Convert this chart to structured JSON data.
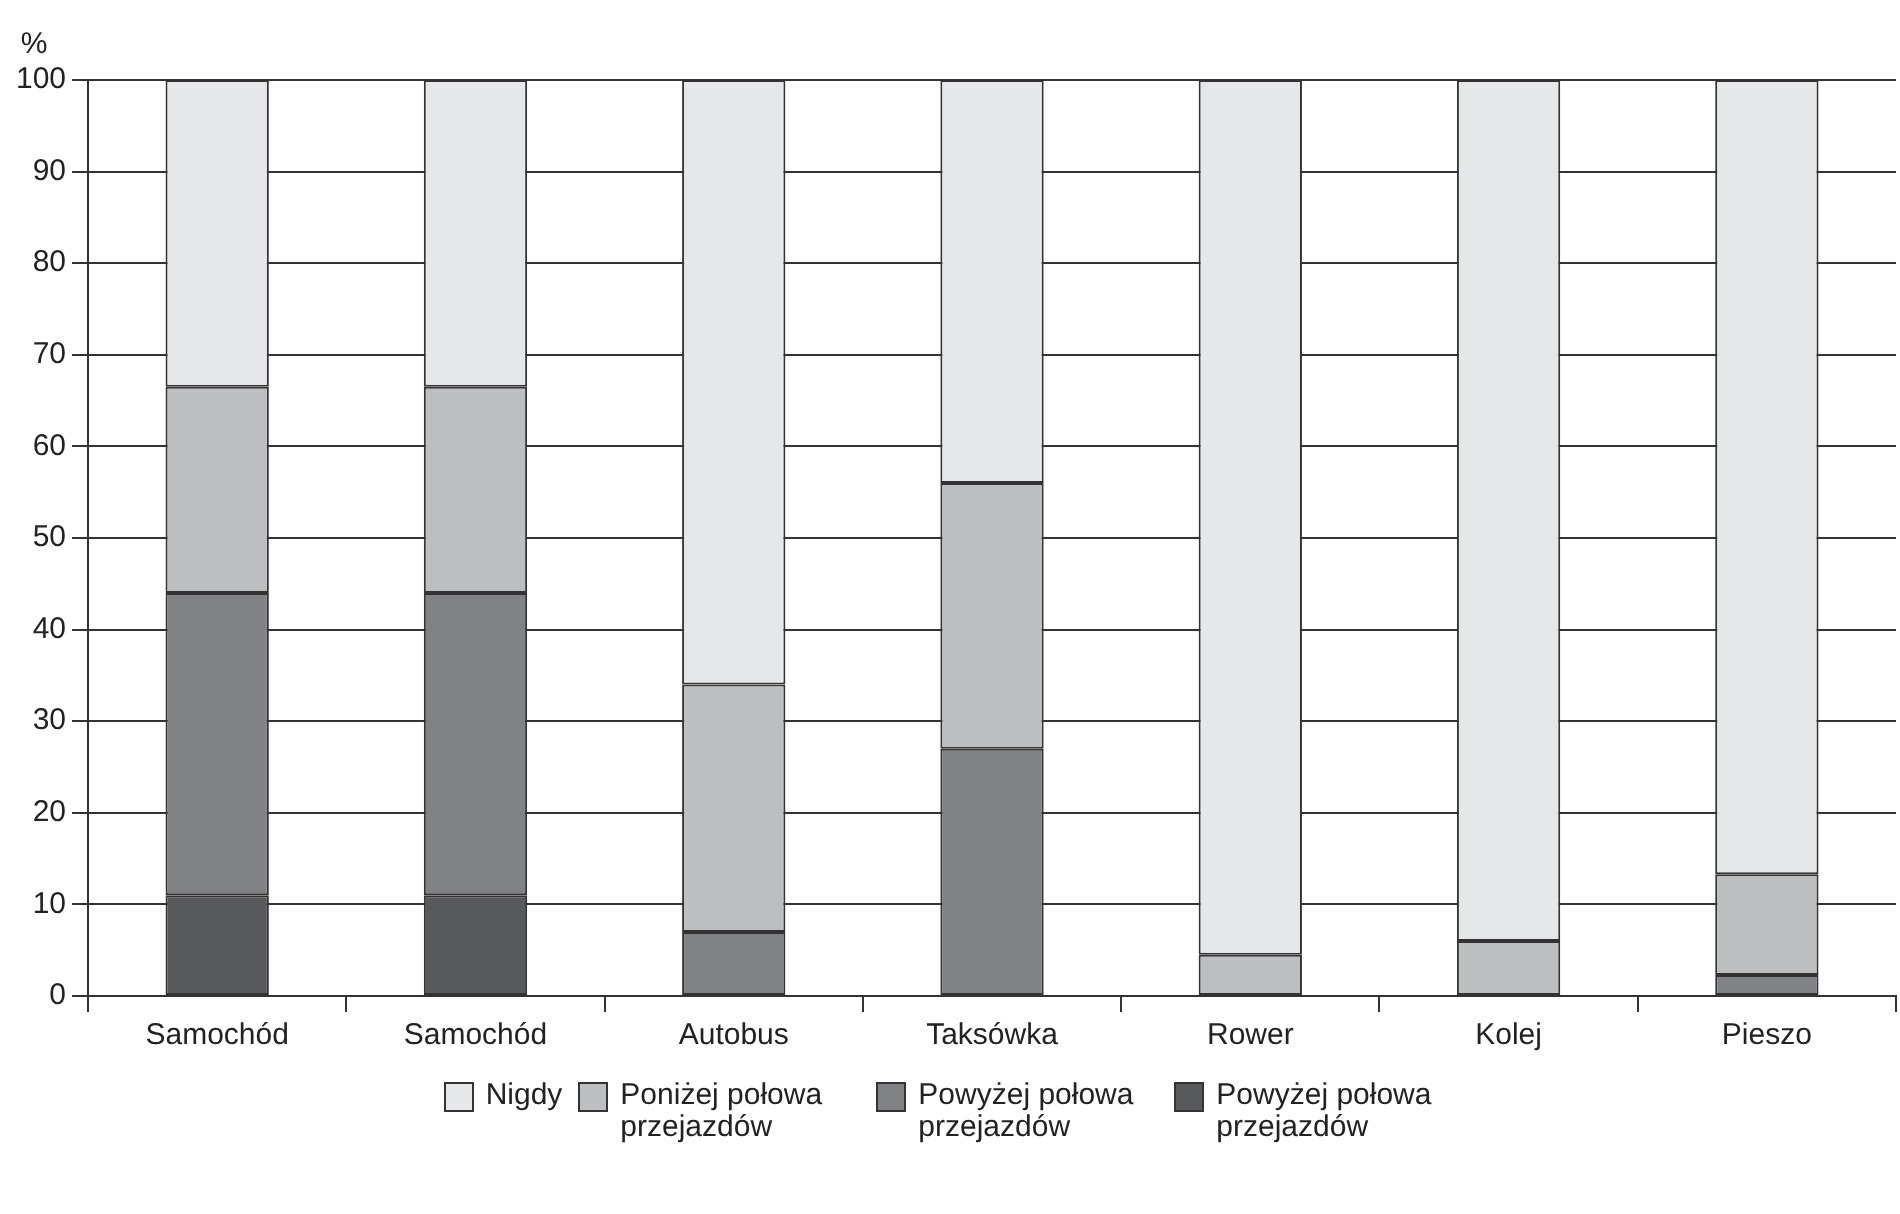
{
  "chart_data": {
    "type": "bar",
    "stacked": true,
    "ylabel": "%",
    "categories": [
      "Samochód",
      "Samochód",
      "Autobus",
      "Taksówka",
      "Rower",
      "Kolej",
      "Pieszo"
    ],
    "series": [
      {
        "name": "Powyżej połowa przejazdów",
        "color": "#58595b",
        "values": [
          11,
          11,
          0,
          0,
          0,
          0,
          0
        ]
      },
      {
        "name": "Powyżej połowa przejazdów",
        "color": "#808285",
        "values": [
          33,
          33,
          7,
          27,
          0,
          0,
          2.3
        ]
      },
      {
        "name": "Poniżej połowa przejazdów",
        "color": "#bcbec0",
        "values": [
          22.5,
          22.5,
          27,
          29,
          4.5,
          6,
          11
        ]
      },
      {
        "name": "Nigdy",
        "color": "#e6e7e8",
        "values": [
          33.5,
          33.5,
          66,
          44,
          95.5,
          94,
          86.7
        ]
      }
    ],
    "ylim": [
      0,
      100
    ],
    "yticks": [
      0,
      10,
      20,
      30,
      40,
      50,
      60,
      70,
      80,
      90,
      100
    ],
    "grid": "y",
    "legend": "bottom"
  }
}
